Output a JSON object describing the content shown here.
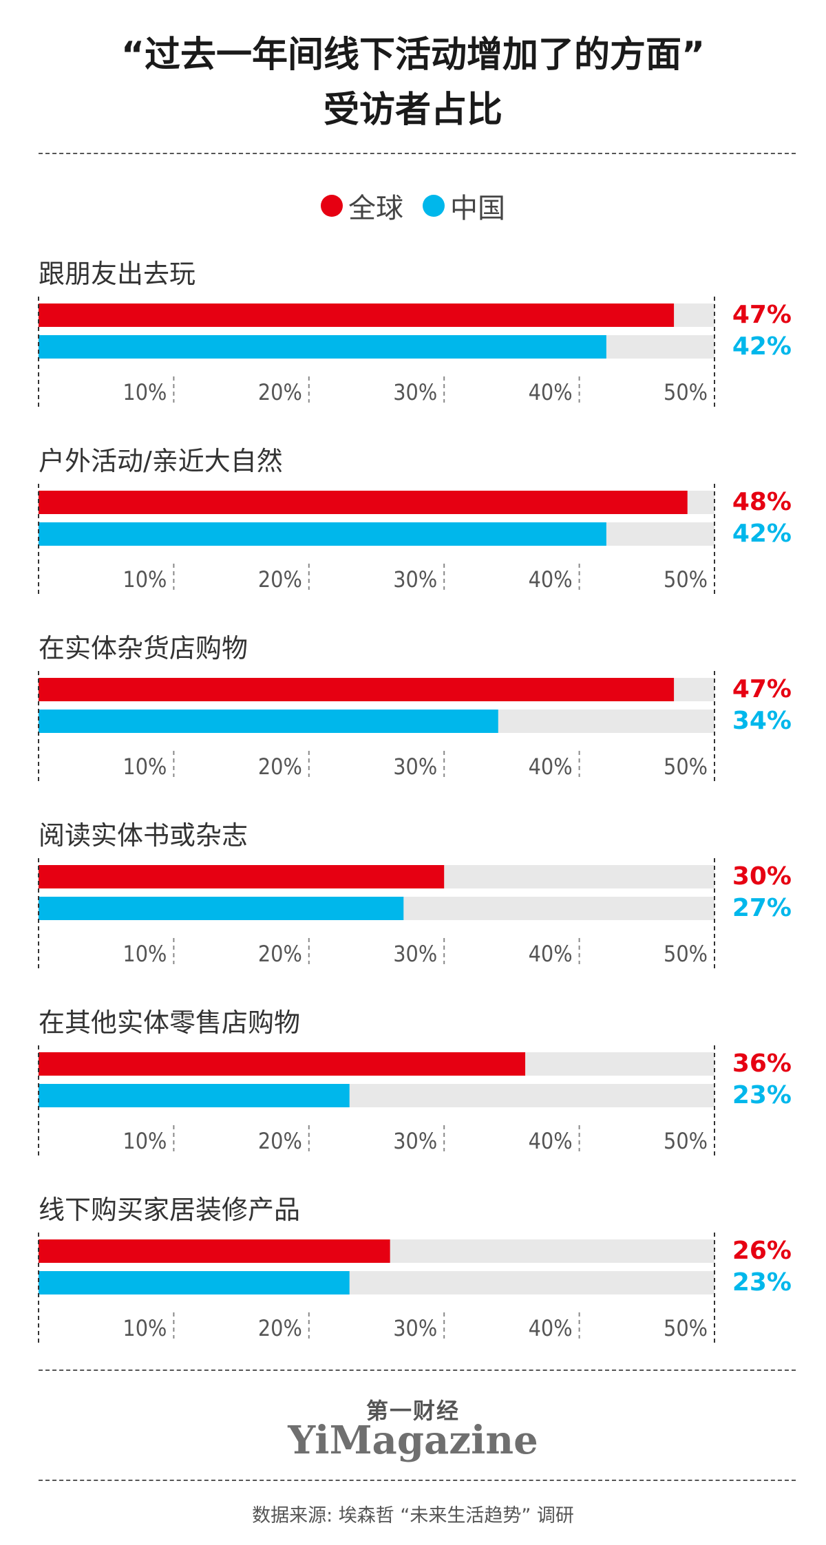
{
  "title_lines": [
    "“过去一年间线下活动增加了的方面”",
    "受访者占比"
  ],
  "legend": [
    {
      "label": "全球",
      "color": "#e60012"
    },
    {
      "label": "中国",
      "color": "#00b7eb"
    }
  ],
  "colors": {
    "global": "#e60012",
    "china": "#00b7eb",
    "track": "#e8e8e8"
  },
  "chart_data": {
    "type": "bar",
    "orientation": "horizontal",
    "xlim": [
      0,
      50
    ],
    "ticks": [
      "10%",
      "20%",
      "30%",
      "40%",
      "50%"
    ],
    "tick_values": [
      10,
      20,
      30,
      40,
      50
    ],
    "grid": true,
    "legend_position": "top-center",
    "series_names": [
      "全球",
      "中国"
    ],
    "categories": [
      {
        "label": "跟朋友出去玩",
        "global": 47,
        "china": 42,
        "global_label": "47%",
        "china_label": "42%"
      },
      {
        "label": "户外活动/亲近大自然",
        "global": 48,
        "china": 42,
        "global_label": "48%",
        "china_label": "42%"
      },
      {
        "label": "在实体杂货店购物",
        "global": 47,
        "china": 34,
        "global_label": "47%",
        "china_label": "34%"
      },
      {
        "label": "阅读实体书或杂志",
        "global": 30,
        "china": 27,
        "global_label": "30%",
        "china_label": "27%"
      },
      {
        "label": "在其他实体零售店购物",
        "global": 36,
        "china": 23,
        "global_label": "36%",
        "china_label": "23%"
      },
      {
        "label": "线下购买家居装修产品",
        "global": 26,
        "china": 23,
        "global_label": "26%",
        "china_label": "23%"
      }
    ]
  },
  "logo": {
    "cn": "第一财经",
    "en": "YiMagazine"
  },
  "source": "数据来源: 埃森哲 “未来生活趋势” 调研"
}
